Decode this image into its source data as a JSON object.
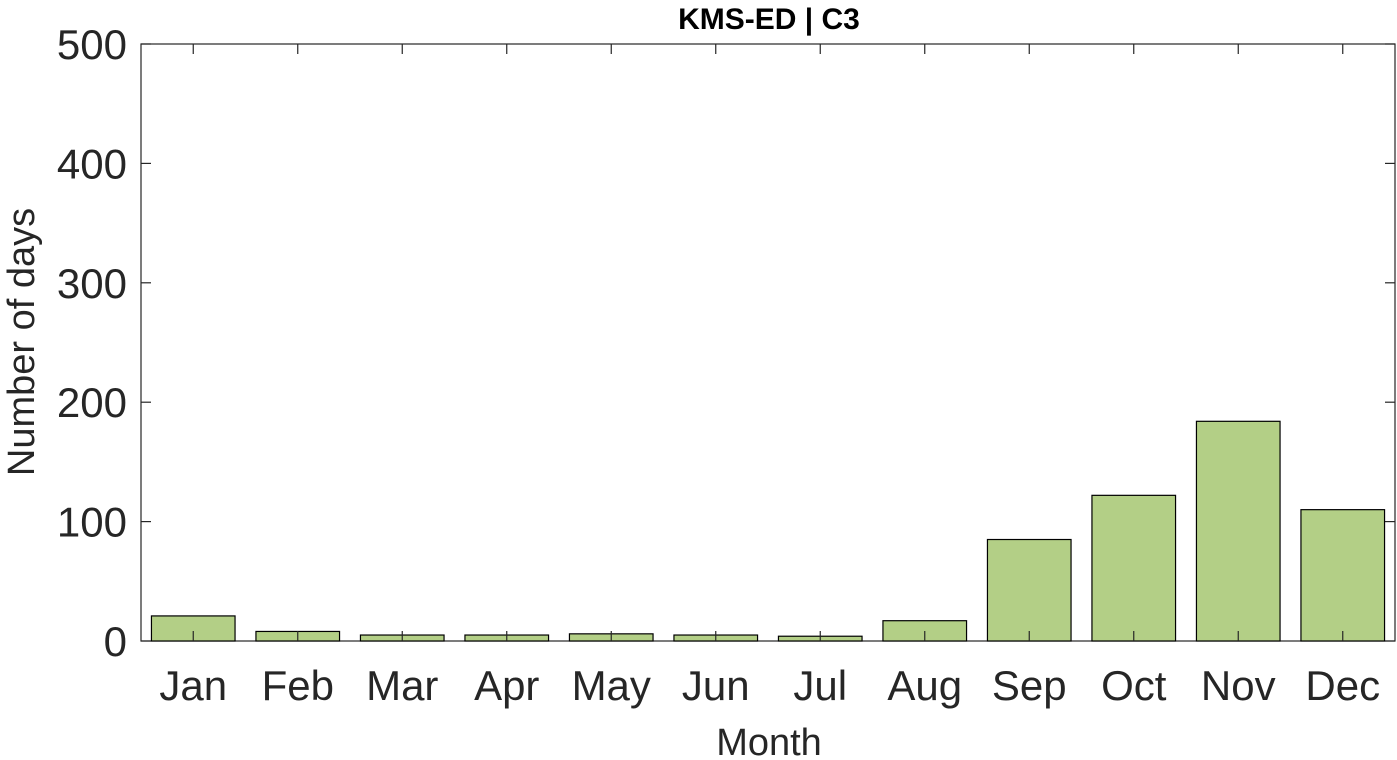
{
  "chart_data": {
    "type": "bar",
    "title": "KMS-ED | C3",
    "xlabel": "Month",
    "ylabel": "Number of days",
    "categories": [
      "Jan",
      "Feb",
      "Mar",
      "Apr",
      "May",
      "Jun",
      "Jul",
      "Aug",
      "Sep",
      "Oct",
      "Nov",
      "Dec"
    ],
    "values": [
      21,
      8,
      5,
      5,
      6,
      5,
      4,
      17,
      85,
      122,
      184,
      110
    ],
    "ylim": [
      0,
      500
    ],
    "yticks": [
      0,
      100,
      200,
      300,
      400,
      500
    ],
    "bar_color": "#b3cf86",
    "bar_edge_color": "#000000",
    "grid": false,
    "legend": "none"
  }
}
